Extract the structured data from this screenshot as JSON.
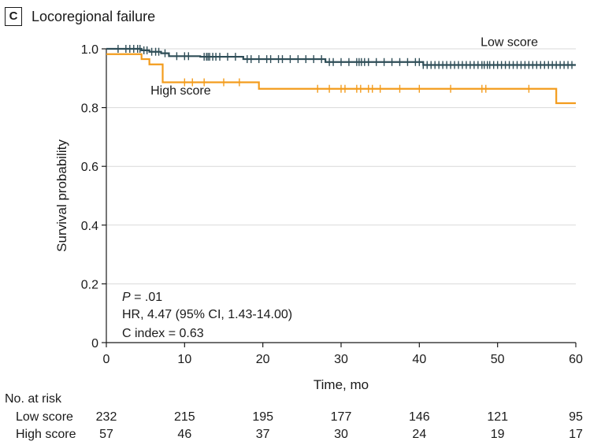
{
  "panel": {
    "letter": "C",
    "title": "Locoregional failure"
  },
  "chart_data": {
    "type": "line",
    "subtype": "kaplan-meier",
    "title": "Locoregional failure",
    "xlabel": "Time, mo",
    "ylabel": "Survival probability",
    "xlim": [
      0,
      60
    ],
    "ylim": [
      0,
      1.0
    ],
    "xticks": [
      0,
      10,
      20,
      30,
      40,
      50,
      60
    ],
    "yticks": [
      0,
      0.2,
      0.4,
      0.6,
      0.8,
      1.0
    ],
    "ytick_labels": [
      "0",
      "0.2",
      "0.4",
      "0.6",
      "0.8",
      "1.0"
    ],
    "grid": "horizontal",
    "series": [
      {
        "name": "Low score",
        "color": "#2e4d57",
        "steps": [
          [
            0,
            1.0
          ],
          [
            4.5,
            0.995
          ],
          [
            5.5,
            0.99
          ],
          [
            7.0,
            0.985
          ],
          [
            8.0,
            0.975
          ],
          [
            12.0,
            0.973
          ],
          [
            17.5,
            0.965
          ],
          [
            28.0,
            0.955
          ],
          [
            40.5,
            0.945
          ],
          [
            60,
            0.945
          ]
        ],
        "censor_times": [
          1.5,
          2.5,
          3.0,
          3.5,
          4.0,
          4.3,
          4.8,
          5.2,
          5.8,
          6.3,
          6.7,
          7.5,
          9.0,
          10.0,
          10.5,
          12.5,
          12.8,
          13.0,
          13.2,
          13.6,
          14.0,
          14.5,
          15.5,
          16.5,
          18.0,
          18.5,
          19.5,
          20.5,
          21.0,
          22.0,
          22.5,
          23.5,
          24.5,
          25.5,
          26.5,
          27.5,
          28.5,
          29.0,
          30.0,
          31.0,
          32.0,
          32.3,
          32.6,
          33.0,
          33.5,
          34.5,
          35.5,
          36.5,
          37.5,
          38.5,
          39.5,
          40.0,
          40.5,
          41.0,
          41.5,
          42.0,
          42.5,
          43.0,
          43.5,
          44.0,
          44.5,
          45.0,
          45.5,
          46.0,
          46.5,
          47.0,
          47.5,
          48.0,
          48.3,
          48.7,
          49.0,
          49.5,
          50.0,
          50.5,
          51.0,
          51.5,
          52.0,
          52.5,
          53.0,
          53.5,
          54.0,
          54.5,
          55.0,
          55.5,
          56.0,
          56.5,
          57.0,
          57.5,
          58.0,
          58.5,
          59.0,
          59.5
        ],
        "label_pos": [
          51.5,
          1.01
        ]
      },
      {
        "name": "High score",
        "color": "#f39c1d",
        "steps": [
          [
            0,
            0.982
          ],
          [
            4.5,
            0.965
          ],
          [
            5.5,
            0.947
          ],
          [
            7.2,
            0.886
          ],
          [
            19.5,
            0.864
          ],
          [
            57.5,
            0.815
          ],
          [
            60,
            0.815
          ]
        ],
        "censor_times": [
          10.0,
          11.0,
          12.5,
          15.0,
          17.0,
          27.0,
          28.5,
          30.0,
          30.5,
          32.0,
          32.5,
          33.5,
          34.0,
          35.0,
          37.5,
          40.0,
          44.0,
          48.0,
          48.5,
          54.0
        ],
        "label_pos": [
          9.5,
          0.845
        ]
      }
    ],
    "annotations": {
      "p_prefix": "P",
      "p_value": " = .01",
      "hr": "HR, 4.47 (95% CI, 1.43-14.00)",
      "c_index": "C index = 0.63"
    },
    "risk_table": {
      "header": "No. at risk",
      "times": [
        0,
        10,
        20,
        30,
        40,
        50,
        60
      ],
      "rows": [
        {
          "label": "Low score",
          "values": [
            "232",
            "215",
            "195",
            "177",
            "146",
            "121",
            "95"
          ]
        },
        {
          "label": "High score",
          "values": [
            "57",
            "46",
            "37",
            "30",
            "24",
            "19",
            "17"
          ]
        }
      ]
    }
  }
}
